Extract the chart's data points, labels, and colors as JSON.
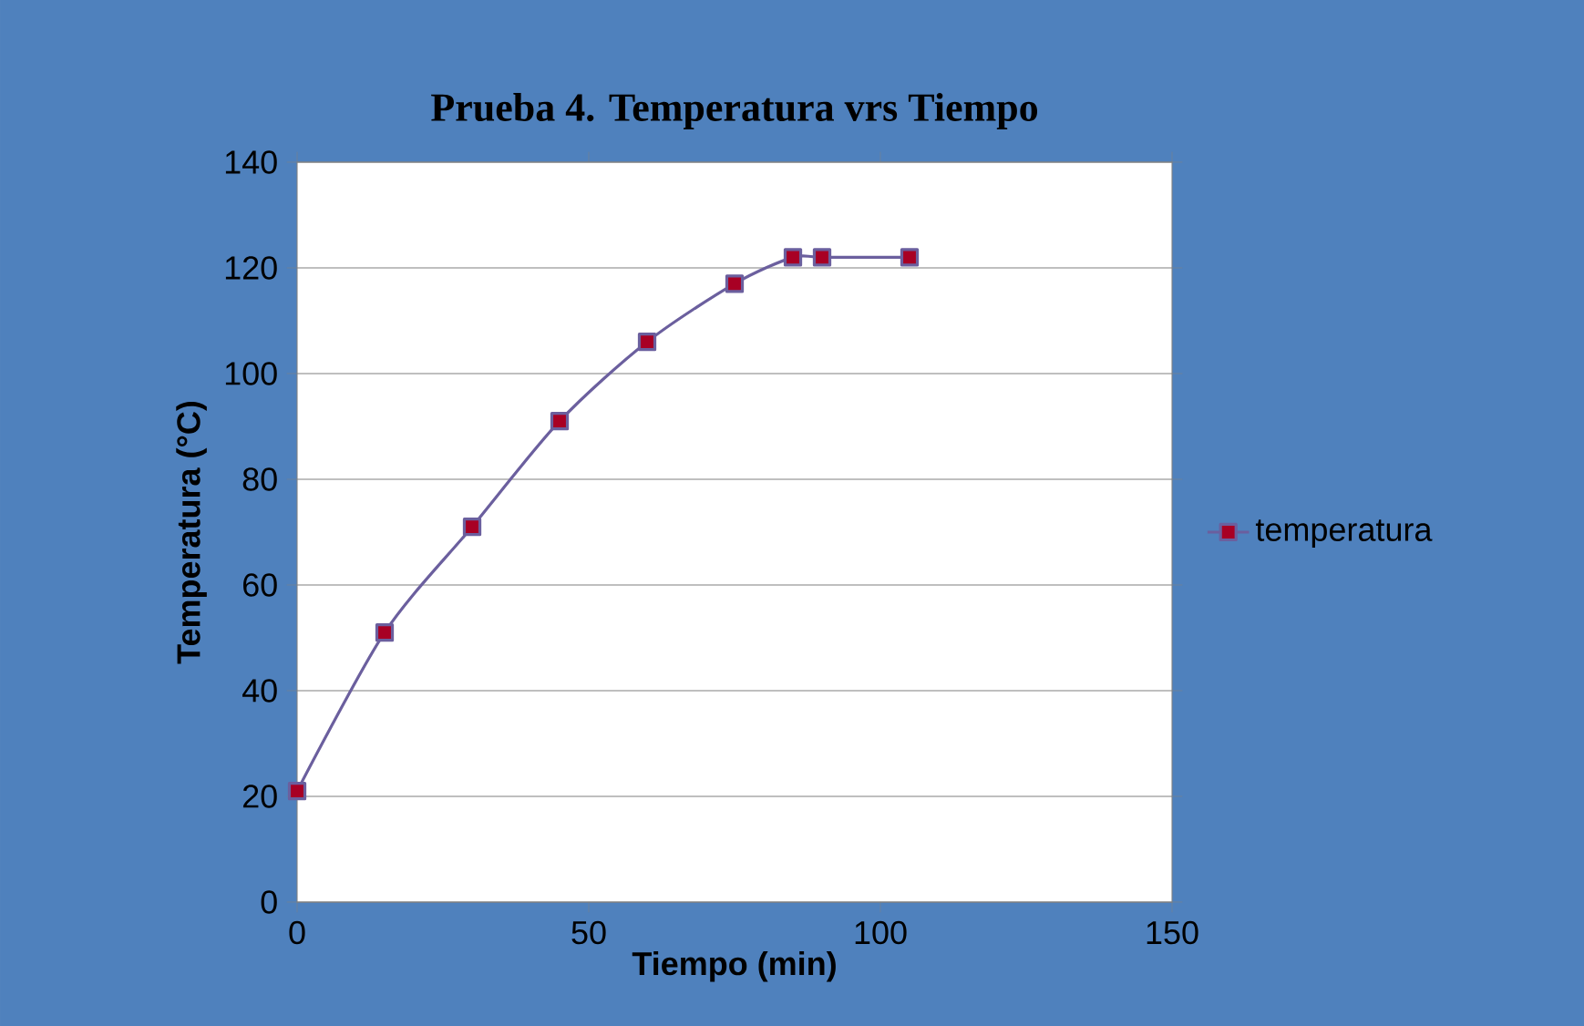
{
  "chart_data": {
    "type": "line",
    "title": "Prueba 4. Temperatura vrs Tiempo",
    "xlabel": "Tiempo (min)",
    "ylabel": "Temperatura (°C)",
    "x": [
      0,
      15,
      30,
      45,
      60,
      75,
      85,
      90,
      105
    ],
    "series": [
      {
        "name": "temperatura",
        "color": "#6b5f9e",
        "values": [
          21,
          51,
          71,
          91,
          106,
          117,
          122,
          122,
          122
        ]
      }
    ],
    "xlim": [
      0,
      150
    ],
    "ylim": [
      0,
      140
    ],
    "xticks": [
      0,
      50,
      100,
      150
    ],
    "yticks": [
      0,
      20,
      40,
      60,
      80,
      100,
      120,
      140
    ],
    "grid": "y",
    "legend": "right",
    "marker": "square"
  }
}
